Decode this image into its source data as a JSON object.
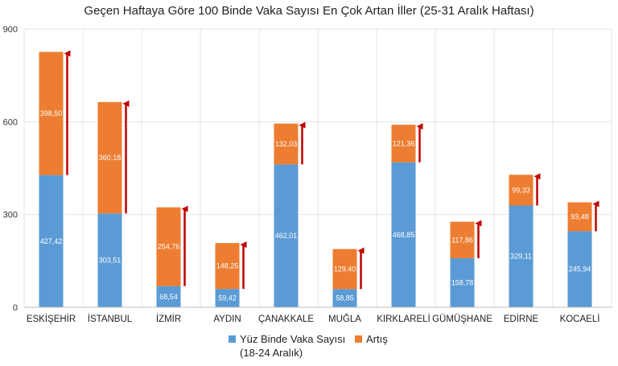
{
  "chart_data": {
    "type": "bar",
    "stacked": true,
    "title": "Geçen Haftaya Göre 100 Binde Vaka Sayısı En Çok Artan İller (25-31 Aralık Haftası)",
    "categories": [
      "ESKİŞEHİR",
      "İSTANBUL",
      "İZMİR",
      "AYDIN",
      "ÇANAKKALE",
      "MUĞLA",
      "KIRKLARELİ",
      "GÜMÜŞHANE",
      "EDİRNE",
      "KOCAELİ"
    ],
    "series": [
      {
        "name": "Yüz Binde Vaka Sayısı",
        "name_line2": "(18-24 Aralık)",
        "color": "#5b9bd5",
        "values": [
          427.42,
          303.51,
          68.54,
          59.42,
          462.01,
          58.85,
          468.85,
          158.78,
          329.11,
          245.94
        ],
        "labels": [
          "427,42",
          "303,51",
          "68,54",
          "59,42",
          "462,01",
          "58,85",
          "468,85",
          "158,78",
          "329,11",
          "245,94"
        ]
      },
      {
        "name": "Artış",
        "color": "#ed7d31",
        "values": [
          398.5,
          360.18,
          254.76,
          148.25,
          132.03,
          129.4,
          121.36,
          117.86,
          99.33,
          93.48
        ],
        "labels": [
          "398,50",
          "360,18",
          "254,76",
          "148,25",
          "132,03",
          "129,40",
          "121,36",
          "117,86",
          "99,33",
          "93,48"
        ]
      }
    ],
    "ylim": [
      0,
      900
    ],
    "yticks": [
      0,
      300,
      600,
      900
    ],
    "ytick_labels": [
      "0",
      "300",
      "600",
      "900"
    ],
    "grid": true,
    "legend_position": "bottom",
    "arrow_color": "#c00000"
  }
}
